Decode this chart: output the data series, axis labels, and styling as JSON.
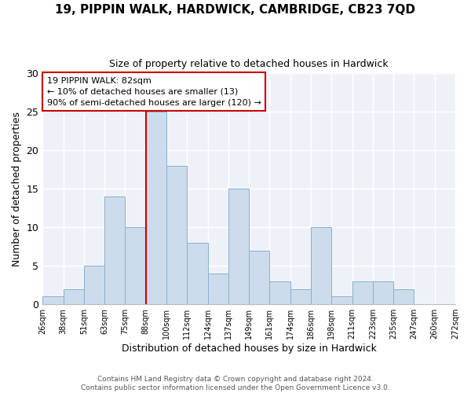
{
  "title": "19, PIPPIN WALK, HARDWICK, CAMBRIDGE, CB23 7QD",
  "subtitle": "Size of property relative to detached houses in Hardwick",
  "xlabel": "Distribution of detached houses by size in Hardwick",
  "ylabel": "Number of detached properties",
  "bar_color": "#ccdcec",
  "bar_edgecolor": "#88b0cc",
  "background_color": "#eef2f8",
  "categories": [
    "26sqm",
    "38sqm",
    "51sqm",
    "63sqm",
    "75sqm",
    "88sqm",
    "100sqm",
    "112sqm",
    "124sqm",
    "137sqm",
    "149sqm",
    "161sqm",
    "174sqm",
    "186sqm",
    "198sqm",
    "211sqm",
    "223sqm",
    "235sqm",
    "247sqm",
    "260sqm",
    "272sqm"
  ],
  "values": [
    1,
    2,
    5,
    14,
    10,
    25,
    18,
    8,
    4,
    15,
    7,
    3,
    2,
    10,
    1,
    3,
    3,
    2,
    0,
    0
  ],
  "ylim": [
    0,
    30
  ],
  "yticks": [
    0,
    5,
    10,
    15,
    20,
    25,
    30
  ],
  "vline_pos": 5,
  "vline_color": "#cc0000",
  "annotation_title": "19 PIPPIN WALK: 82sqm",
  "annotation_line1": "← 10% of detached houses are smaller (13)",
  "annotation_line2": "90% of semi-detached houses are larger (120) →",
  "annotation_box_edgecolor": "#cc0000",
  "footer1": "Contains HM Land Registry data © Crown copyright and database right 2024.",
  "footer2": "Contains public sector information licensed under the Open Government Licence v3.0."
}
